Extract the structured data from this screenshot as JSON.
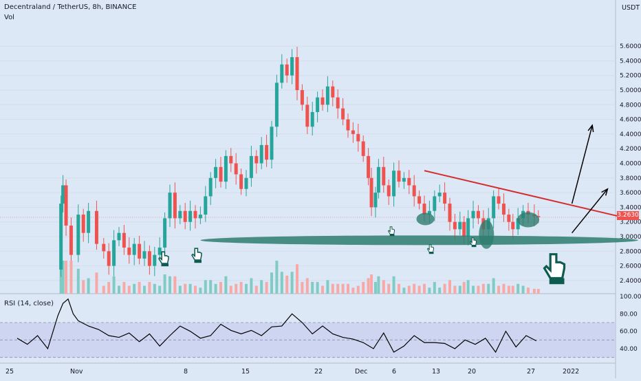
{
  "header": {
    "title": "Decentraland / TetherUS, 8h, BINANCE",
    "volume_label": "Vol",
    "rsi_label": "RSI (14, close)",
    "currency": "USDT",
    "last_price": "3.2630"
  },
  "colors": {
    "background": "#dde8f6",
    "up_candle": "#26a69a",
    "down_candle": "#ef5350",
    "volume_up": "#80cbc4",
    "volume_down": "#f7a9a7",
    "rsi_band": "#c7cdf0",
    "rsi_line": "#000000",
    "trendline": "#d32f2f",
    "support_ellipse": "#2e7d6f",
    "arrows": "#000000",
    "last_price_line": "#ef5350"
  },
  "chart_data": [
    {
      "type": "candlestick",
      "title": "Decentraland / TetherUS, 8h, BINANCE",
      "ylabel": "USDT",
      "ylim": [
        2.3,
        5.9
      ],
      "y_ticks": [
        "5.6000",
        "5.4000",
        "5.2000",
        "5.0000",
        "4.8000",
        "4.6000",
        "4.4000",
        "4.2000",
        "4.0000",
        "3.8000",
        "3.6000",
        "3.4000",
        "3.2000",
        "3.0000",
        "2.8000",
        "2.6000",
        "2.4000"
      ],
      "x_ticks": [
        "25",
        "Nov",
        "8",
        "15",
        "22",
        "Dec",
        "6",
        "13",
        "20",
        "27",
        "2022"
      ],
      "last_price": 3.263,
      "close_path": [
        {
          "day": 29.0,
          "close": 2.55
        },
        {
          "day": 29.3,
          "close": 3.45
        },
        {
          "day": 29.5,
          "close": 3.7
        },
        {
          "day": 29.8,
          "close": 3.15
        },
        {
          "day": 30.3,
          "close": 2.75
        },
        {
          "day": 31.0,
          "close": 3.3
        },
        {
          "day": 31.5,
          "close": 3.05
        },
        {
          "day": 32.0,
          "close": 3.35
        },
        {
          "day": 32.8,
          "close": 2.9
        },
        {
          "day": 33.5,
          "close": 2.8
        },
        {
          "day": 34.0,
          "close": 2.6
        },
        {
          "day": 34.5,
          "close": 2.95
        },
        {
          "day": 35.0,
          "close": 3.05
        },
        {
          "day": 35.5,
          "close": 2.85
        },
        {
          "day": 36.0,
          "close": 2.75
        },
        {
          "day": 36.5,
          "close": 2.9
        },
        {
          "day": 37.0,
          "close": 2.7
        },
        {
          "day": 37.5,
          "close": 2.8
        },
        {
          "day": 38.0,
          "close": 2.6
        },
        {
          "day": 38.5,
          "close": 2.75
        },
        {
          "day": 39.0,
          "close": 2.85
        },
        {
          "day": 39.5,
          "close": 3.25
        },
        {
          "day": 40.0,
          "close": 3.6
        },
        {
          "day": 40.5,
          "close": 3.25
        },
        {
          "day": 41.0,
          "close": 3.35
        },
        {
          "day": 41.5,
          "close": 3.2
        },
        {
          "day": 42.0,
          "close": 3.35
        },
        {
          "day": 42.5,
          "close": 3.25
        },
        {
          "day": 43.0,
          "close": 3.3
        },
        {
          "day": 43.5,
          "close": 3.55
        },
        {
          "day": 44.0,
          "close": 3.8
        },
        {
          "day": 44.5,
          "close": 3.95
        },
        {
          "day": 45.0,
          "close": 3.75
        },
        {
          "day": 45.5,
          "close": 4.1
        },
        {
          "day": 46.0,
          "close": 4.0
        },
        {
          "day": 46.5,
          "close": 3.85
        },
        {
          "day": 47.0,
          "close": 3.65
        },
        {
          "day": 47.5,
          "close": 3.8
        },
        {
          "day": 48.0,
          "close": 4.1
        },
        {
          "day": 48.5,
          "close": 4.0
        },
        {
          "day": 49.0,
          "close": 4.25
        },
        {
          "day": 49.5,
          "close": 4.05
        },
        {
          "day": 50.0,
          "close": 4.5
        },
        {
          "day": 50.5,
          "close": 5.1
        },
        {
          "day": 51.0,
          "close": 5.35
        },
        {
          "day": 51.5,
          "close": 5.2
        },
        {
          "day": 52.0,
          "close": 5.45
        },
        {
          "day": 52.5,
          "close": 5.0
        },
        {
          "day": 53.0,
          "close": 4.8
        },
        {
          "day": 53.5,
          "close": 4.5
        },
        {
          "day": 54.0,
          "close": 4.7
        },
        {
          "day": 54.5,
          "close": 4.9
        },
        {
          "day": 55.0,
          "close": 4.8
        },
        {
          "day": 55.5,
          "close": 5.05
        },
        {
          "day": 56.0,
          "close": 4.9
        },
        {
          "day": 56.5,
          "close": 4.75
        },
        {
          "day": 57.0,
          "close": 4.6
        },
        {
          "day": 57.5,
          "close": 4.45
        },
        {
          "day": 58.0,
          "close": 4.4
        },
        {
          "day": 58.5,
          "close": 4.3
        },
        {
          "day": 59.0,
          "close": 4.1
        },
        {
          "day": 59.5,
          "close": 3.8
        },
        {
          "day": 59.8,
          "close": 3.4
        },
        {
          "day": 60.2,
          "close": 3.6
        },
        {
          "day": 60.5,
          "close": 3.95
        },
        {
          "day": 61.0,
          "close": 3.7
        },
        {
          "day": 61.5,
          "close": 3.55
        },
        {
          "day": 62.0,
          "close": 3.9
        },
        {
          "day": 62.5,
          "close": 3.75
        },
        {
          "day": 63.0,
          "close": 3.8
        },
        {
          "day": 63.5,
          "close": 3.7
        },
        {
          "day": 64.0,
          "close": 3.55
        },
        {
          "day": 64.5,
          "close": 3.45
        },
        {
          "day": 65.0,
          "close": 3.3
        },
        {
          "day": 65.5,
          "close": 3.35
        },
        {
          "day": 66.0,
          "close": 3.55
        },
        {
          "day": 66.5,
          "close": 3.6
        },
        {
          "day": 67.0,
          "close": 3.45
        },
        {
          "day": 67.5,
          "close": 3.2
        },
        {
          "day": 68.0,
          "close": 3.1
        },
        {
          "day": 68.5,
          "close": 3.2
        },
        {
          "day": 68.9,
          "close": 3.0
        },
        {
          "day": 69.3,
          "close": 3.25
        },
        {
          "day": 69.8,
          "close": 3.35
        },
        {
          "day": 70.3,
          "close": 3.25
        },
        {
          "day": 70.8,
          "close": 3.1
        },
        {
          "day": 71.3,
          "close": 3.25
        },
        {
          "day": 71.8,
          "close": 3.55
        },
        {
          "day": 72.3,
          "close": 3.45
        },
        {
          "day": 72.8,
          "close": 3.3
        },
        {
          "day": 73.3,
          "close": 3.2
        },
        {
          "day": 73.7,
          "close": 3.1
        },
        {
          "day": 74.2,
          "close": 3.25
        },
        {
          "day": 74.7,
          "close": 3.35
        },
        {
          "day": 75.2,
          "close": 3.3
        },
        {
          "day": 75.8,
          "close": 3.28
        },
        {
          "day": 76.2,
          "close": 3.263
        }
      ],
      "annotations": {
        "trendline": [
          {
            "day": 65.0,
            "price": 3.9
          },
          {
            "day": 84.0,
            "price": 3.28
          }
        ],
        "support_zone": {
          "day_from": 43.0,
          "day_to": 86.0,
          "price": 2.95
        },
        "target_arrows": [
          {
            "from_day": 79.5,
            "from_price": 3.45,
            "to_day": 81.5,
            "to_price": 4.52
          },
          {
            "from_day": 79.5,
            "from_price": 3.05,
            "to_day": 83.0,
            "to_price": 3.65
          }
        ]
      }
    },
    {
      "type": "line",
      "title": "RSI (14, close)",
      "ylim": [
        25,
        105
      ],
      "y_ticks": [
        "100.00",
        "80.00",
        "60.00",
        "40.00"
      ],
      "band": [
        30,
        70
      ],
      "midline": 50,
      "x": [
        25,
        26,
        27,
        28,
        29,
        29.5,
        30,
        30.5,
        31,
        32,
        33,
        34,
        35,
        36,
        37,
        38,
        39,
        40,
        41,
        42,
        43,
        44,
        45,
        46,
        47,
        48,
        49,
        50,
        51,
        52,
        53,
        54,
        55,
        56,
        57,
        58,
        59,
        60,
        61,
        62,
        63,
        64,
        65,
        66,
        67,
        68,
        69,
        70,
        71,
        72,
        73,
        74,
        75,
        76
      ],
      "values": [
        52,
        45,
        55,
        40,
        78,
        92,
        97,
        80,
        72,
        66,
        62,
        55,
        53,
        58,
        48,
        57,
        43,
        55,
        66,
        60,
        52,
        55,
        68,
        61,
        57,
        61,
        55,
        65,
        66,
        80,
        70,
        57,
        66,
        57,
        53,
        51,
        47,
        40,
        58,
        36,
        43,
        55,
        47,
        47,
        46,
        40,
        50,
        45,
        52,
        36,
        60,
        42,
        55,
        49
      ]
    }
  ]
}
